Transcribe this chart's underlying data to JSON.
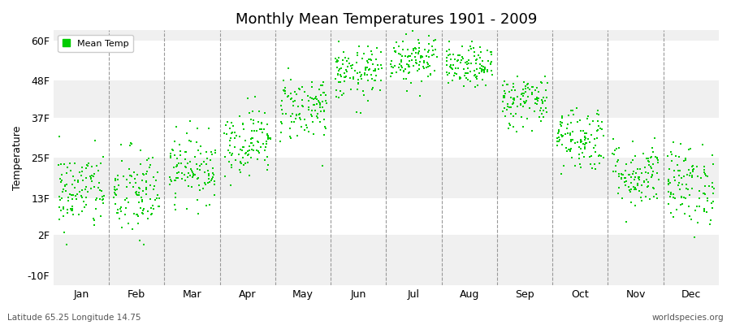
{
  "title": "Monthly Mean Temperatures 1901 - 2009",
  "ylabel": "Temperature",
  "subtitle_left": "Latitude 65.25 Longitude 14.75",
  "subtitle_right": "worldspecies.org",
  "yticks": [
    -10,
    2,
    13,
    25,
    37,
    48,
    60
  ],
  "ytick_labels": [
    "-10F",
    "2F",
    "13F",
    "25F",
    "37F",
    "48F",
    "60F"
  ],
  "ylim": [
    -13,
    63
  ],
  "months": [
    "Jan",
    "Feb",
    "Mar",
    "Apr",
    "May",
    "Jun",
    "Jul",
    "Aug",
    "Sep",
    "Oct",
    "Nov",
    "Dec"
  ],
  "dot_color": "#00cc00",
  "dot_size": 3,
  "background_color": "#ffffff",
  "band_colors": [
    "#f0f0f0",
    "#ffffff"
  ],
  "n_years": 109,
  "seed": 42,
  "mean_temps_f": [
    15,
    14,
    22,
    30,
    40,
    50,
    55,
    52,
    42,
    31,
    20,
    17
  ],
  "std_temps_f": [
    6,
    7,
    5,
    5,
    5,
    4,
    4,
    3,
    4,
    5,
    5,
    6
  ]
}
